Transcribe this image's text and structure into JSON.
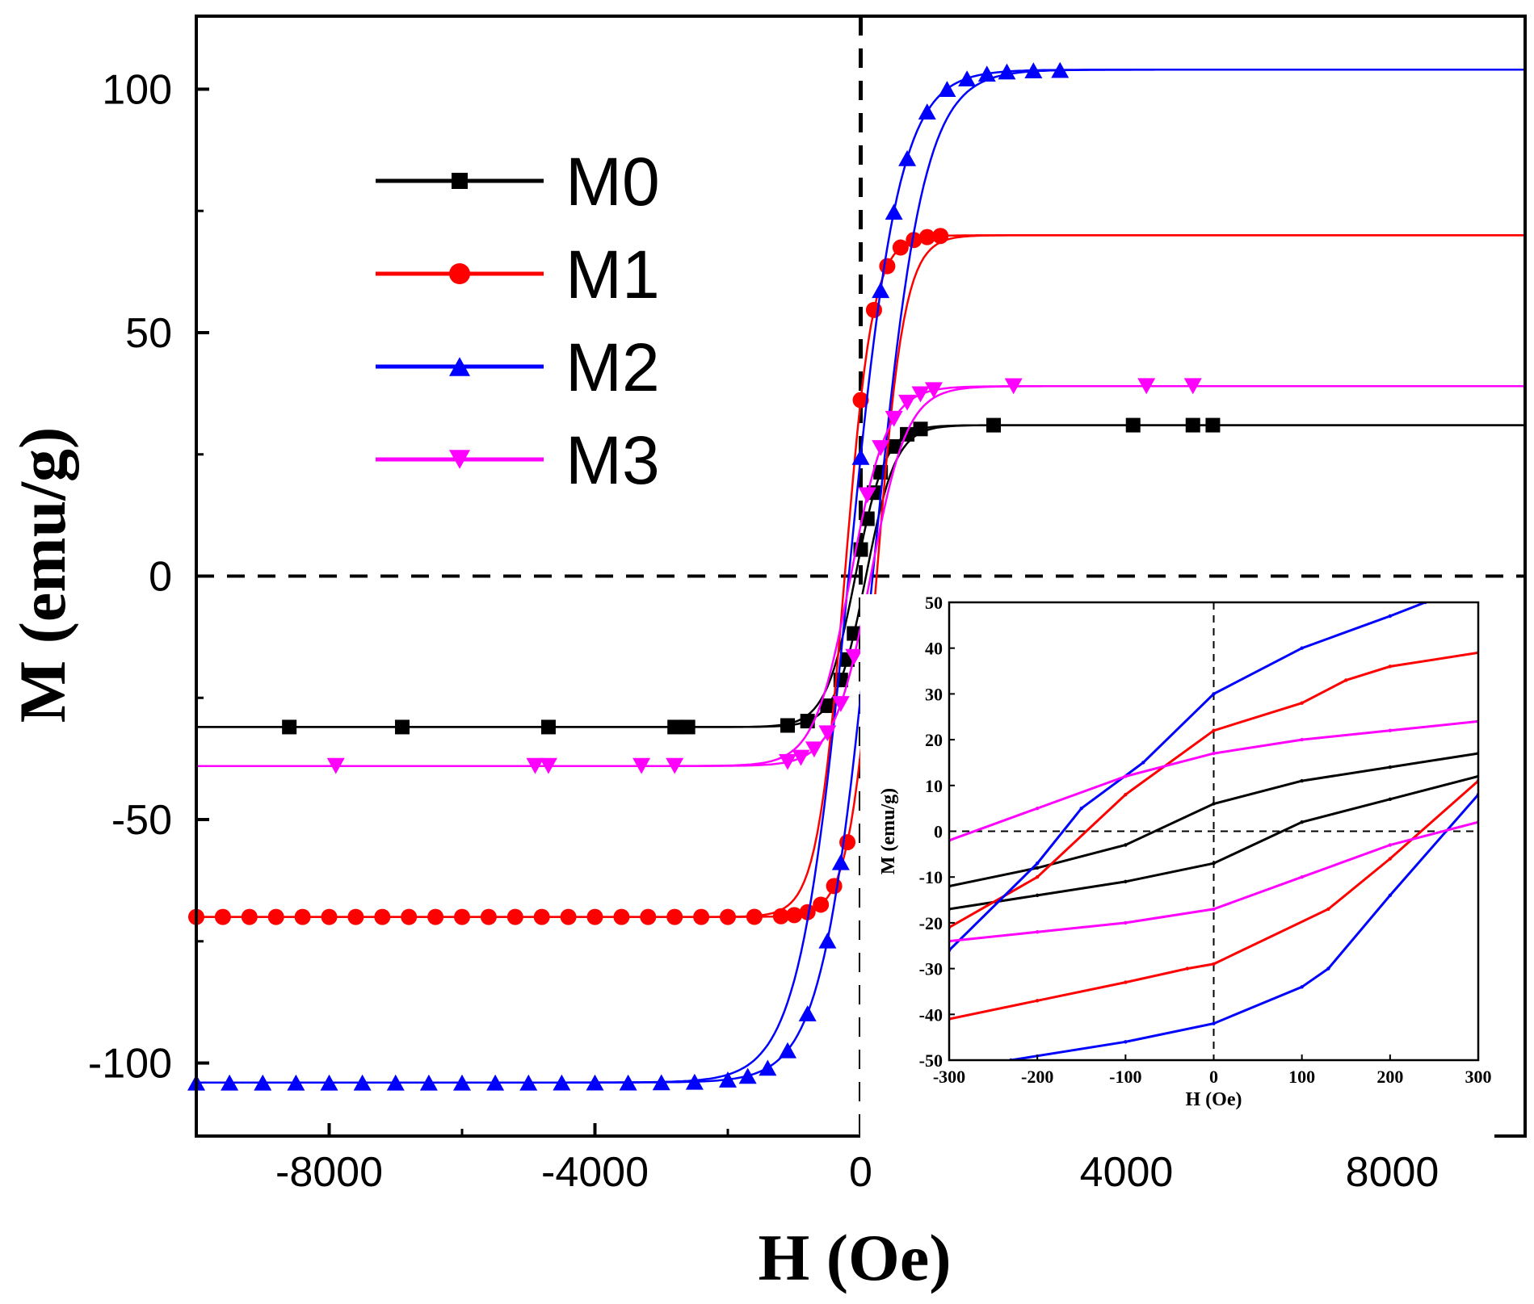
{
  "chart_data": {
    "type": "line",
    "xlabel": "H (Oe)",
    "ylabel": "M (emu/g)",
    "xlim": [
      -10000,
      10000
    ],
    "ylim": [
      -115,
      115
    ],
    "xticks": [
      -8000,
      -4000,
      0,
      4000,
      8000
    ],
    "yticks": [
      -100,
      -50,
      0,
      50,
      100
    ],
    "xtick_labels": [
      "-8000",
      "-4000",
      "0",
      "4000",
      "8000"
    ],
    "ytick_labels": [
      "-100",
      "-50",
      "0",
      "50",
      "100"
    ],
    "zero_lines": true,
    "legend_position": "upper-left",
    "series": [
      {
        "name": "M0",
        "color": "#000000",
        "marker": "square",
        "ms": 31,
        "hc": 80,
        "h0": 450,
        "marker_h": [
          -8600,
          -6900,
          -4700,
          -2800,
          -2600,
          -1100,
          -800,
          -500,
          -300,
          -200,
          -100,
          0,
          100,
          200,
          300,
          500,
          700,
          900,
          2000,
          4100,
          5000,
          5300
        ]
      },
      {
        "name": "M1",
        "color": "#ff0000",
        "marker": "circle",
        "ms": 70,
        "hc": 240,
        "h0": 420,
        "marker_h": [
          -10000,
          -9600,
          -9200,
          -8800,
          -8400,
          -8000,
          -7600,
          -7200,
          -6800,
          -6400,
          -6000,
          -5600,
          -5200,
          -4800,
          -4400,
          -4000,
          -3600,
          -3200,
          -2800,
          -2400,
          -2000,
          -1600,
          -1200,
          -1000,
          -800,
          -600,
          -400,
          -200,
          0,
          200,
          400,
          600,
          800,
          1000,
          1200
        ]
      },
      {
        "name": "M2",
        "color": "#0000ff",
        "marker": "triangle-up",
        "ms": 104,
        "hc": 180,
        "h0": 750,
        "marker_h": [
          -10000,
          -9500,
          -9000,
          -8500,
          -8000,
          -7500,
          -7000,
          -6500,
          -6000,
          -5500,
          -5000,
          -4500,
          -4000,
          -3500,
          -3000,
          -2500,
          -2000,
          -1700,
          -1400,
          -1100,
          -800,
          -500,
          -300,
          0,
          300,
          500,
          700,
          1000,
          1300,
          1600,
          1900,
          2200,
          2600,
          3000
        ]
      },
      {
        "name": "M3",
        "color": "#ff00ff",
        "marker": "triangle-down",
        "ms": 39,
        "hc": 150,
        "h0": 550,
        "marker_h": [
          -7900,
          -4900,
          -4700,
          -3300,
          -2800,
          -1100,
          -900,
          -700,
          -500,
          -300,
          -100,
          100,
          300,
          500,
          700,
          900,
          1100,
          2300,
          4300,
          5000
        ]
      }
    ],
    "inset": {
      "xlabel": "H (Oe)",
      "ylabel": "M (emu/g)",
      "xlim": [
        -300,
        300
      ],
      "ylim": [
        -50,
        50
      ],
      "xticks": [
        -300,
        -200,
        -100,
        0,
        100,
        200,
        300
      ],
      "yticks": [
        -50,
        -40,
        -30,
        -20,
        -10,
        0,
        10,
        20,
        30,
        40,
        50
      ],
      "xtick_labels": [
        "-300",
        "-200",
        "-100",
        "0",
        "100",
        "200",
        "300"
      ],
      "ytick_labels": [
        "-50",
        "-40",
        "-30",
        "-20",
        "-10",
        "0",
        "10",
        "20",
        "30",
        "40",
        "50"
      ],
      "series": [
        {
          "name": "M0",
          "color": "#000000",
          "upper": [
            [
              -300,
              -12
            ],
            [
              -200,
              -8
            ],
            [
              -100,
              -3
            ],
            [
              0,
              6
            ],
            [
              100,
              11
            ],
            [
              200,
              14
            ],
            [
              300,
              17
            ]
          ],
          "lower": [
            [
              -300,
              -17
            ],
            [
              -200,
              -14
            ],
            [
              -100,
              -11
            ],
            [
              0,
              -7
            ],
            [
              100,
              2
            ],
            [
              200,
              7
            ],
            [
              300,
              12
            ]
          ]
        },
        {
          "name": "M1",
          "color": "#ff0000",
          "upper": [
            [
              -300,
              -21
            ],
            [
              -200,
              -10
            ],
            [
              -100,
              8
            ],
            [
              0,
              22
            ],
            [
              100,
              28
            ],
            [
              150,
              33
            ],
            [
              200,
              36
            ],
            [
              300,
              39
            ]
          ],
          "lower": [
            [
              -300,
              -41
            ],
            [
              -200,
              -37
            ],
            [
              -100,
              -33
            ],
            [
              -30,
              -30
            ],
            [
              0,
              -29
            ],
            [
              130,
              -17
            ],
            [
              200,
              -6
            ],
            [
              300,
              11
            ]
          ]
        },
        {
          "name": "M2",
          "color": "#0000ff",
          "upper": [
            [
              -300,
              -26
            ],
            [
              -200,
              -7
            ],
            [
              -150,
              5
            ],
            [
              -80,
              15
            ],
            [
              0,
              30
            ],
            [
              100,
              40
            ],
            [
              200,
              47
            ],
            [
              240,
              50
            ]
          ],
          "lower": [
            [
              -230,
              -50
            ],
            [
              -100,
              -46
            ],
            [
              0,
              -42
            ],
            [
              100,
              -34
            ],
            [
              130,
              -30
            ],
            [
              200,
              -14
            ],
            [
              300,
              8
            ]
          ]
        },
        {
          "name": "M3",
          "color": "#ff00ff",
          "upper": [
            [
              -300,
              -2
            ],
            [
              -200,
              5
            ],
            [
              -100,
              12
            ],
            [
              0,
              17
            ],
            [
              100,
              20
            ],
            [
              200,
              22
            ],
            [
              300,
              24
            ]
          ],
          "lower": [
            [
              -300,
              -24
            ],
            [
              -200,
              -22
            ],
            [
              -100,
              -20
            ],
            [
              0,
              -17
            ],
            [
              100,
              -10
            ],
            [
              200,
              -3
            ],
            [
              300,
              2
            ]
          ]
        }
      ]
    }
  }
}
